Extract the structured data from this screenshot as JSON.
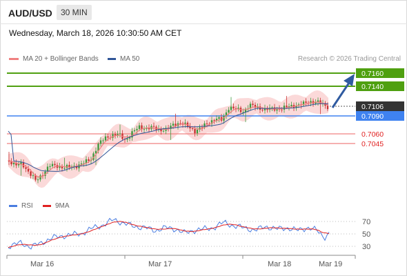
{
  "header": {
    "symbol": "AUD/USD",
    "timeframe": "30 MIN",
    "datetime": "Wednesday, March 18, 2026 10:30:50 AM CET"
  },
  "legend": {
    "ma20_label": "MA 20 + Bollinger Bands",
    "ma50_label": "MA 50",
    "ma20_color": "#f08080",
    "ma50_color": "#2f5597",
    "copyright": "Research © 2026 Trading Central"
  },
  "levels": {
    "resistance": [
      {
        "price": "0.7160",
        "color": "#4fa010"
      },
      {
        "price": "0.7140",
        "color": "#4fa010"
      }
    ],
    "pivot": {
      "price": "0.7090",
      "color": "#3f82f0"
    },
    "support": [
      {
        "price": "0.7060",
        "color": "#e02020"
      },
      {
        "price": "0.7045",
        "color": "#e02020"
      }
    ],
    "last_price": "0.7106"
  },
  "rsi_legend": {
    "rsi_label": "RSI",
    "ma_label": "9MA",
    "rsi_color": "#4a7de0",
    "ma_color": "#e02020"
  },
  "rsi_axis": [
    "70",
    "50",
    "30"
  ],
  "time_axis": [
    "Mar 16",
    "Mar 17",
    "Mar 18",
    "Mar 19"
  ],
  "colors": {
    "bull_candle": "#3e9a3e",
    "bear_candle": "#c83232",
    "arrow": "#2f5aa0",
    "band_fill": "#fbd9d9"
  }
}
